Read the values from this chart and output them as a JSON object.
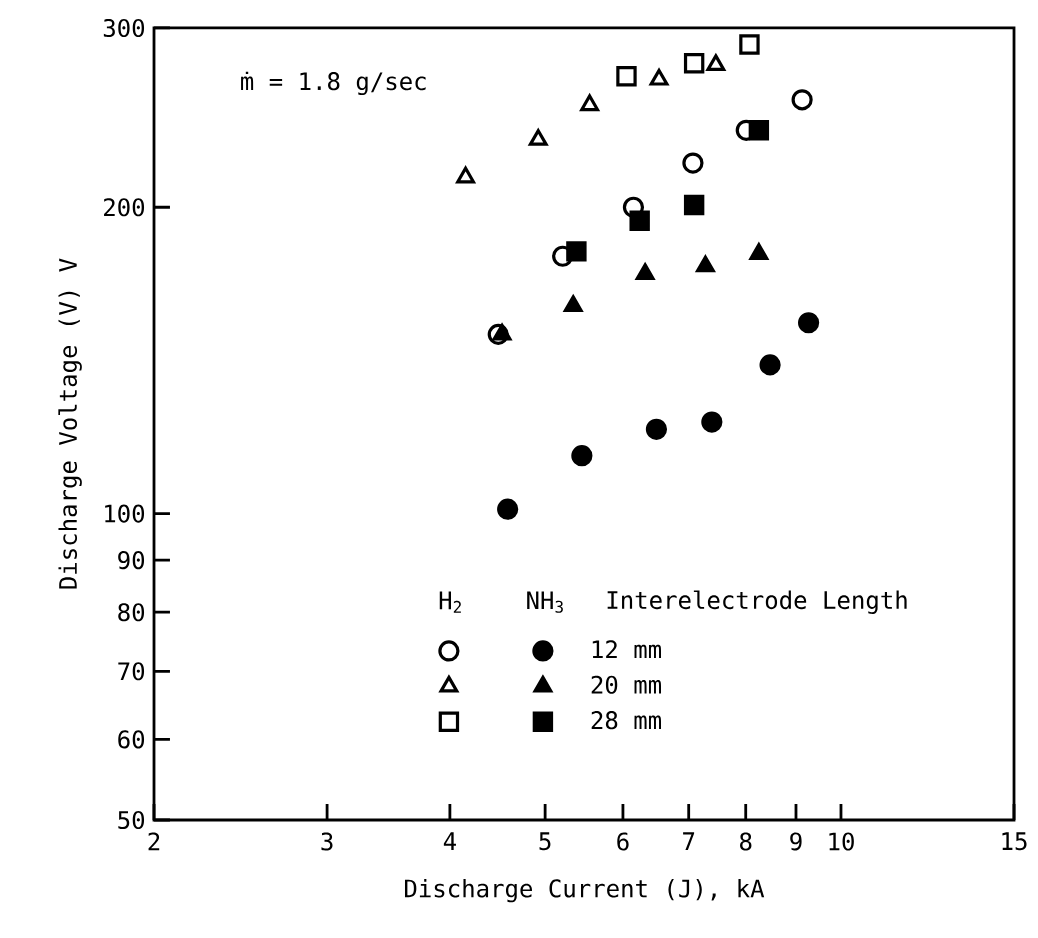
{
  "chart_data": {
    "type": "scatter",
    "xlabel": "Discharge Current (J), kA",
    "ylabel": "Discharge Voltage (V)  V",
    "log": "xy",
    "grid": false,
    "legend": "bottom",
    "legend_title": "Interelectrode Length",
    "annotations": [
      "ṁ = 1.8 g/sec",
      "H$_{2}$",
      "NH$_{3}$"
    ],
    "xlim": [
      2,
      15
    ],
    "xticks": [
      2,
      3,
      4,
      5,
      6,
      7,
      8,
      9,
      10,
      15
    ],
    "ylim": [
      50,
      300
    ],
    "yticks": [
      50,
      60,
      70,
      80,
      90,
      100,
      200,
      300
    ],
    "series": [
      {
        "color": "#000000",
        "marker": "circle-open",
        "x": [
          4.48,
          5.21,
          6.15,
          7.07,
          8.01,
          9.13
        ],
        "values": [
          150,
          179,
          200,
          221,
          238,
          255
        ]
      },
      {
        "name": "12 mm",
        "color": "#000000",
        "marker": "circle",
        "x": [
          4.58,
          5.45,
          6.49,
          7.39,
          8.47,
          9.27
        ],
        "values": [
          101,
          114,
          121,
          123,
          140,
          154
        ]
      },
      {
        "color": "#000000",
        "marker": "triangle-open",
        "x": [
          4.15,
          4.92,
          5.55,
          6.53,
          7.46
        ],
        "values": [
          214,
          233,
          252,
          267,
          276
        ]
      },
      {
        "name": "20 mm",
        "color": "#000000",
        "marker": "triangle",
        "x": [
          4.52,
          5.34,
          6.32,
          7.28,
          8.25
        ],
        "values": [
          150,
          160,
          172,
          175,
          180
        ]
      },
      {
        "color": "#000000",
        "marker": "square-open",
        "x": [
          6.05,
          7.09,
          8.07
        ],
        "values": [
          269,
          277,
          289
        ]
      },
      {
        "name": "28 mm",
        "color": "#000000",
        "marker": "square",
        "x": [
          5.38,
          6.24,
          7.09,
          8.25
        ],
        "values": [
          181,
          194,
          201,
          238
        ]
      }
    ]
  }
}
